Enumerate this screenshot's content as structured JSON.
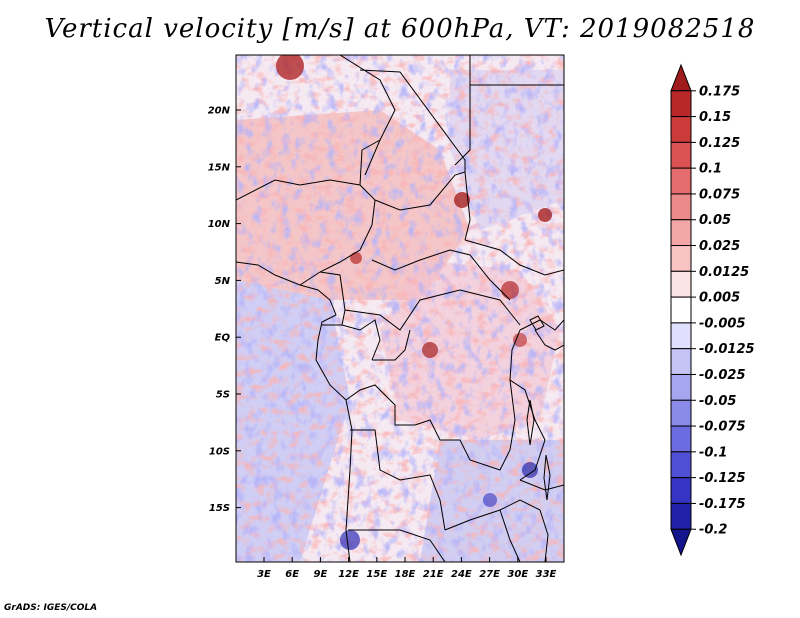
{
  "title": "Vertical velocity [m/s] at 600hPa, VT: 2019082518",
  "map": {
    "lat_labels": [
      "20N",
      "15N",
      "10N",
      "5N",
      "EQ",
      "5S",
      "10S",
      "15S"
    ],
    "lon_labels": [
      "3E",
      "6E",
      "9E",
      "12E",
      "15E",
      "18E",
      "21E",
      "24E",
      "27E",
      "30E",
      "33E"
    ]
  },
  "colorbar": {
    "levels": [
      "0.175",
      "0.15",
      "0.125",
      "0.1",
      "0.075",
      "0.05",
      "0.025",
      "0.0125",
      "0.005",
      "-0.005",
      "-0.0125",
      "-0.025",
      "-0.05",
      "-0.075",
      "-0.1",
      "-0.125",
      "-0.175",
      "-0.2"
    ],
    "colors": [
      "#a01b1b",
      "#b82828",
      "#cc3a3a",
      "#dc5252",
      "#e46c6c",
      "#ec8a8a",
      "#f2a6a6",
      "#f8c4c4",
      "#fde4e4",
      "#ffffff",
      "#e0e0fc",
      "#c4c4f6",
      "#a6a6f0",
      "#8a8ae8",
      "#6c6ce0",
      "#5050d4",
      "#3535c4",
      "#2020a8",
      "#14148c"
    ]
  },
  "credit": "GrADS: IGES/COLA"
}
